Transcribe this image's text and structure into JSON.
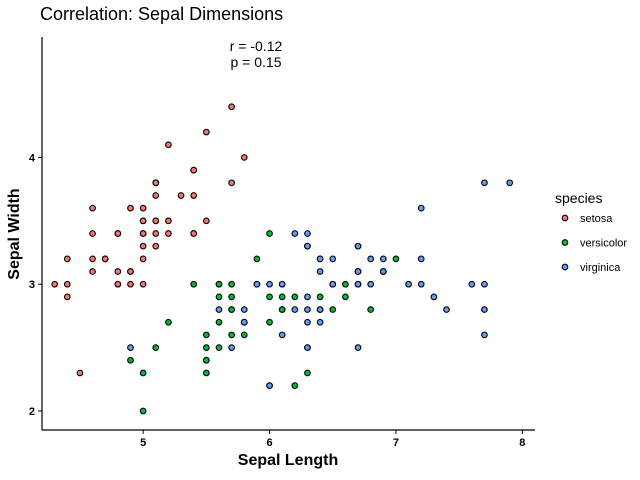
{
  "chart_data": {
    "type": "scatter",
    "title": "Correlation: Sepal Dimensions",
    "xlabel": "Sepal Length",
    "ylabel": "Sepal Width",
    "xlim": [
      4.2,
      8.1
    ],
    "ylim": [
      1.85,
      4.95
    ],
    "xticks": [
      5,
      6,
      7,
      8
    ],
    "yticks": [
      2,
      3,
      4
    ],
    "grid": false,
    "legend": {
      "title": "species",
      "placement": "right"
    },
    "annotation": [
      "r = -0.12",
      "p = 0.15"
    ],
    "series": [
      {
        "name": "setosa",
        "color": "#f8766d",
        "points": [
          [
            5.1,
            3.5
          ],
          [
            4.9,
            3.0
          ],
          [
            4.7,
            3.2
          ],
          [
            4.6,
            3.1
          ],
          [
            5.0,
            3.6
          ],
          [
            5.4,
            3.9
          ],
          [
            4.6,
            3.4
          ],
          [
            5.0,
            3.4
          ],
          [
            4.4,
            2.9
          ],
          [
            4.9,
            3.1
          ],
          [
            5.4,
            3.7
          ],
          [
            4.8,
            3.4
          ],
          [
            4.8,
            3.0
          ],
          [
            4.3,
            3.0
          ],
          [
            5.8,
            4.0
          ],
          [
            5.7,
            4.4
          ],
          [
            5.4,
            3.9
          ],
          [
            5.1,
            3.5
          ],
          [
            5.7,
            3.8
          ],
          [
            5.1,
            3.8
          ],
          [
            5.4,
            3.4
          ],
          [
            5.1,
            3.7
          ],
          [
            4.6,
            3.6
          ],
          [
            5.1,
            3.3
          ],
          [
            4.8,
            3.4
          ],
          [
            5.0,
            3.0
          ],
          [
            5.0,
            3.4
          ],
          [
            5.2,
            3.5
          ],
          [
            5.2,
            3.4
          ],
          [
            4.7,
            3.2
          ],
          [
            4.8,
            3.1
          ],
          [
            5.4,
            3.4
          ],
          [
            5.2,
            4.1
          ],
          [
            5.5,
            4.2
          ],
          [
            4.9,
            3.1
          ],
          [
            5.0,
            3.2
          ],
          [
            5.5,
            3.5
          ],
          [
            4.9,
            3.6
          ],
          [
            4.4,
            3.0
          ],
          [
            5.1,
            3.4
          ],
          [
            5.0,
            3.5
          ],
          [
            4.5,
            2.3
          ],
          [
            4.4,
            3.2
          ],
          [
            5.0,
            3.5
          ],
          [
            5.1,
            3.8
          ],
          [
            4.8,
            3.0
          ],
          [
            5.1,
            3.8
          ],
          [
            4.6,
            3.2
          ],
          [
            5.3,
            3.7
          ],
          [
            5.0,
            3.3
          ]
        ]
      },
      {
        "name": "versicolor",
        "color": "#00ba38",
        "points": [
          [
            7.0,
            3.2
          ],
          [
            6.4,
            3.2
          ],
          [
            6.9,
            3.1
          ],
          [
            5.5,
            2.3
          ],
          [
            6.5,
            2.8
          ],
          [
            5.7,
            2.8
          ],
          [
            6.3,
            3.3
          ],
          [
            4.9,
            2.4
          ],
          [
            6.6,
            2.9
          ],
          [
            5.2,
            2.7
          ],
          [
            5.0,
            2.0
          ],
          [
            5.9,
            3.0
          ],
          [
            6.0,
            2.2
          ],
          [
            6.1,
            2.9
          ],
          [
            5.6,
            2.9
          ],
          [
            6.7,
            3.1
          ],
          [
            5.6,
            3.0
          ],
          [
            5.8,
            2.7
          ],
          [
            6.2,
            2.2
          ],
          [
            5.6,
            2.5
          ],
          [
            5.9,
            3.2
          ],
          [
            6.1,
            2.8
          ],
          [
            6.3,
            2.5
          ],
          [
            6.1,
            2.8
          ],
          [
            6.4,
            2.9
          ],
          [
            6.6,
            3.0
          ],
          [
            6.8,
            2.8
          ],
          [
            6.7,
            3.0
          ],
          [
            6.0,
            2.9
          ],
          [
            5.7,
            2.6
          ],
          [
            5.5,
            2.4
          ],
          [
            5.5,
            2.4
          ],
          [
            5.8,
            2.7
          ],
          [
            6.0,
            2.7
          ],
          [
            5.4,
            3.0
          ],
          [
            6.0,
            3.4
          ],
          [
            6.7,
            3.1
          ],
          [
            6.3,
            2.3
          ],
          [
            5.6,
            3.0
          ],
          [
            5.5,
            2.5
          ],
          [
            5.5,
            2.6
          ],
          [
            6.1,
            3.0
          ],
          [
            5.8,
            2.6
          ],
          [
            5.0,
            2.3
          ],
          [
            5.6,
            2.7
          ],
          [
            5.7,
            3.0
          ],
          [
            5.7,
            2.9
          ],
          [
            6.2,
            2.9
          ],
          [
            5.1,
            2.5
          ],
          [
            5.7,
            2.8
          ]
        ]
      },
      {
        "name": "virginica",
        "color": "#619cff",
        "points": [
          [
            6.3,
            3.3
          ],
          [
            5.8,
            2.7
          ],
          [
            7.1,
            3.0
          ],
          [
            6.3,
            2.9
          ],
          [
            6.5,
            3.0
          ],
          [
            7.6,
            3.0
          ],
          [
            4.9,
            2.5
          ],
          [
            7.3,
            2.9
          ],
          [
            6.7,
            2.5
          ],
          [
            7.2,
            3.6
          ],
          [
            6.5,
            3.2
          ],
          [
            6.4,
            2.7
          ],
          [
            6.8,
            3.0
          ],
          [
            5.7,
            2.5
          ],
          [
            5.8,
            2.8
          ],
          [
            6.4,
            3.2
          ],
          [
            6.5,
            3.0
          ],
          [
            7.7,
            3.8
          ],
          [
            7.7,
            2.6
          ],
          [
            6.0,
            2.2
          ],
          [
            6.9,
            3.2
          ],
          [
            5.6,
            2.8
          ],
          [
            7.7,
            2.8
          ],
          [
            6.3,
            2.7
          ],
          [
            6.7,
            3.3
          ],
          [
            7.2,
            3.2
          ],
          [
            6.2,
            2.8
          ],
          [
            6.1,
            3.0
          ],
          [
            6.4,
            2.8
          ],
          [
            7.2,
            3.0
          ],
          [
            7.4,
            2.8
          ],
          [
            7.9,
            3.8
          ],
          [
            6.4,
            2.8
          ],
          [
            6.3,
            2.8
          ],
          [
            6.1,
            2.6
          ],
          [
            7.7,
            3.0
          ],
          [
            6.3,
            3.4
          ],
          [
            6.4,
            3.1
          ],
          [
            6.0,
            3.0
          ],
          [
            6.9,
            3.1
          ],
          [
            6.7,
            3.1
          ],
          [
            6.9,
            3.1
          ],
          [
            5.8,
            2.7
          ],
          [
            6.8,
            3.2
          ],
          [
            6.7,
            3.3
          ],
          [
            6.7,
            3.0
          ],
          [
            6.3,
            2.5
          ],
          [
            6.5,
            3.0
          ],
          [
            6.2,
            3.4
          ],
          [
            5.9,
            3.0
          ]
        ]
      }
    ]
  }
}
